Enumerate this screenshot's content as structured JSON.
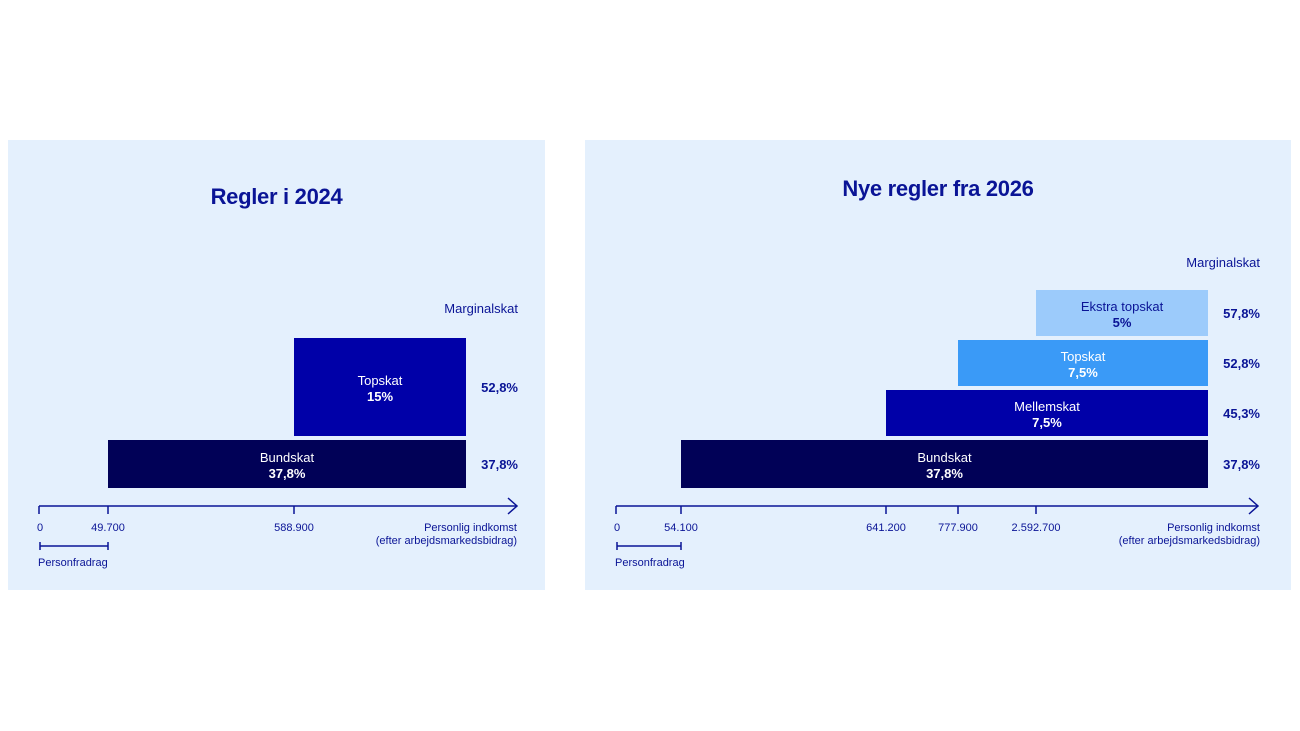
{
  "colors": {
    "panel_bg": "#e4f0fd",
    "text": "#0a1496",
    "bundskat": "#010157",
    "mellemskat": "#0000a8",
    "topskat_2024": "#0000a8",
    "topskat_2026": "#3a9af7",
    "ekstra_topskat": "#9ccbfb"
  },
  "chart_data": [
    {
      "type": "bar",
      "title": "Regler i 2024",
      "marginal_header": "Marginalskat",
      "xlabel_line1": "Personlig indkomst",
      "xlabel_line2": "(efter arbejdsmarkedsbidrag)",
      "bracket_label": "Personfradrag",
      "ticks": [
        {
          "value": 0,
          "label": "0"
        },
        {
          "value": 49700,
          "label": "49.700"
        },
        {
          "value": 588900,
          "label": "588.900"
        }
      ],
      "layers": [
        {
          "name": "Bundskat",
          "rate_label": "37,8%",
          "from": 49700,
          "marginal_label": "37,8%",
          "color": "#010157",
          "text_dark": false
        },
        {
          "name": "Topskat",
          "rate_label": "15%",
          "from": 588900,
          "marginal_label": "52,8%",
          "color": "#0000a8",
          "text_dark": false
        }
      ]
    },
    {
      "type": "bar",
      "title": "Nye regler fra 2026",
      "marginal_header": "Marginalskat",
      "xlabel_line1": "Personlig indkomst",
      "xlabel_line2": "(efter arbejdsmarkedsbidrag)",
      "bracket_label": "Personfradrag",
      "ticks": [
        {
          "value": 0,
          "label": "0"
        },
        {
          "value": 54100,
          "label": "54.100"
        },
        {
          "value": 641200,
          "label": "641.200"
        },
        {
          "value": 777900,
          "label": "777.900"
        },
        {
          "value": 2592700,
          "label": "2.592.700"
        }
      ],
      "layers": [
        {
          "name": "Bundskat",
          "rate_label": "37,8%",
          "from": 54100,
          "marginal_label": "37,8%",
          "color": "#010157",
          "text_dark": false
        },
        {
          "name": "Mellemskat",
          "rate_label": "7,5%",
          "from": 641200,
          "marginal_label": "45,3%",
          "color": "#0000a8",
          "text_dark": false
        },
        {
          "name": "Topskat",
          "rate_label": "7,5%",
          "from": 777900,
          "marginal_label": "52,8%",
          "color": "#3a9af7",
          "text_dark": false
        },
        {
          "name": "Ekstra topskat",
          "rate_label": "5%",
          "from": 2592700,
          "marginal_label": "57,8%",
          "color": "#9ccbfb",
          "text_dark": true
        }
      ]
    }
  ]
}
